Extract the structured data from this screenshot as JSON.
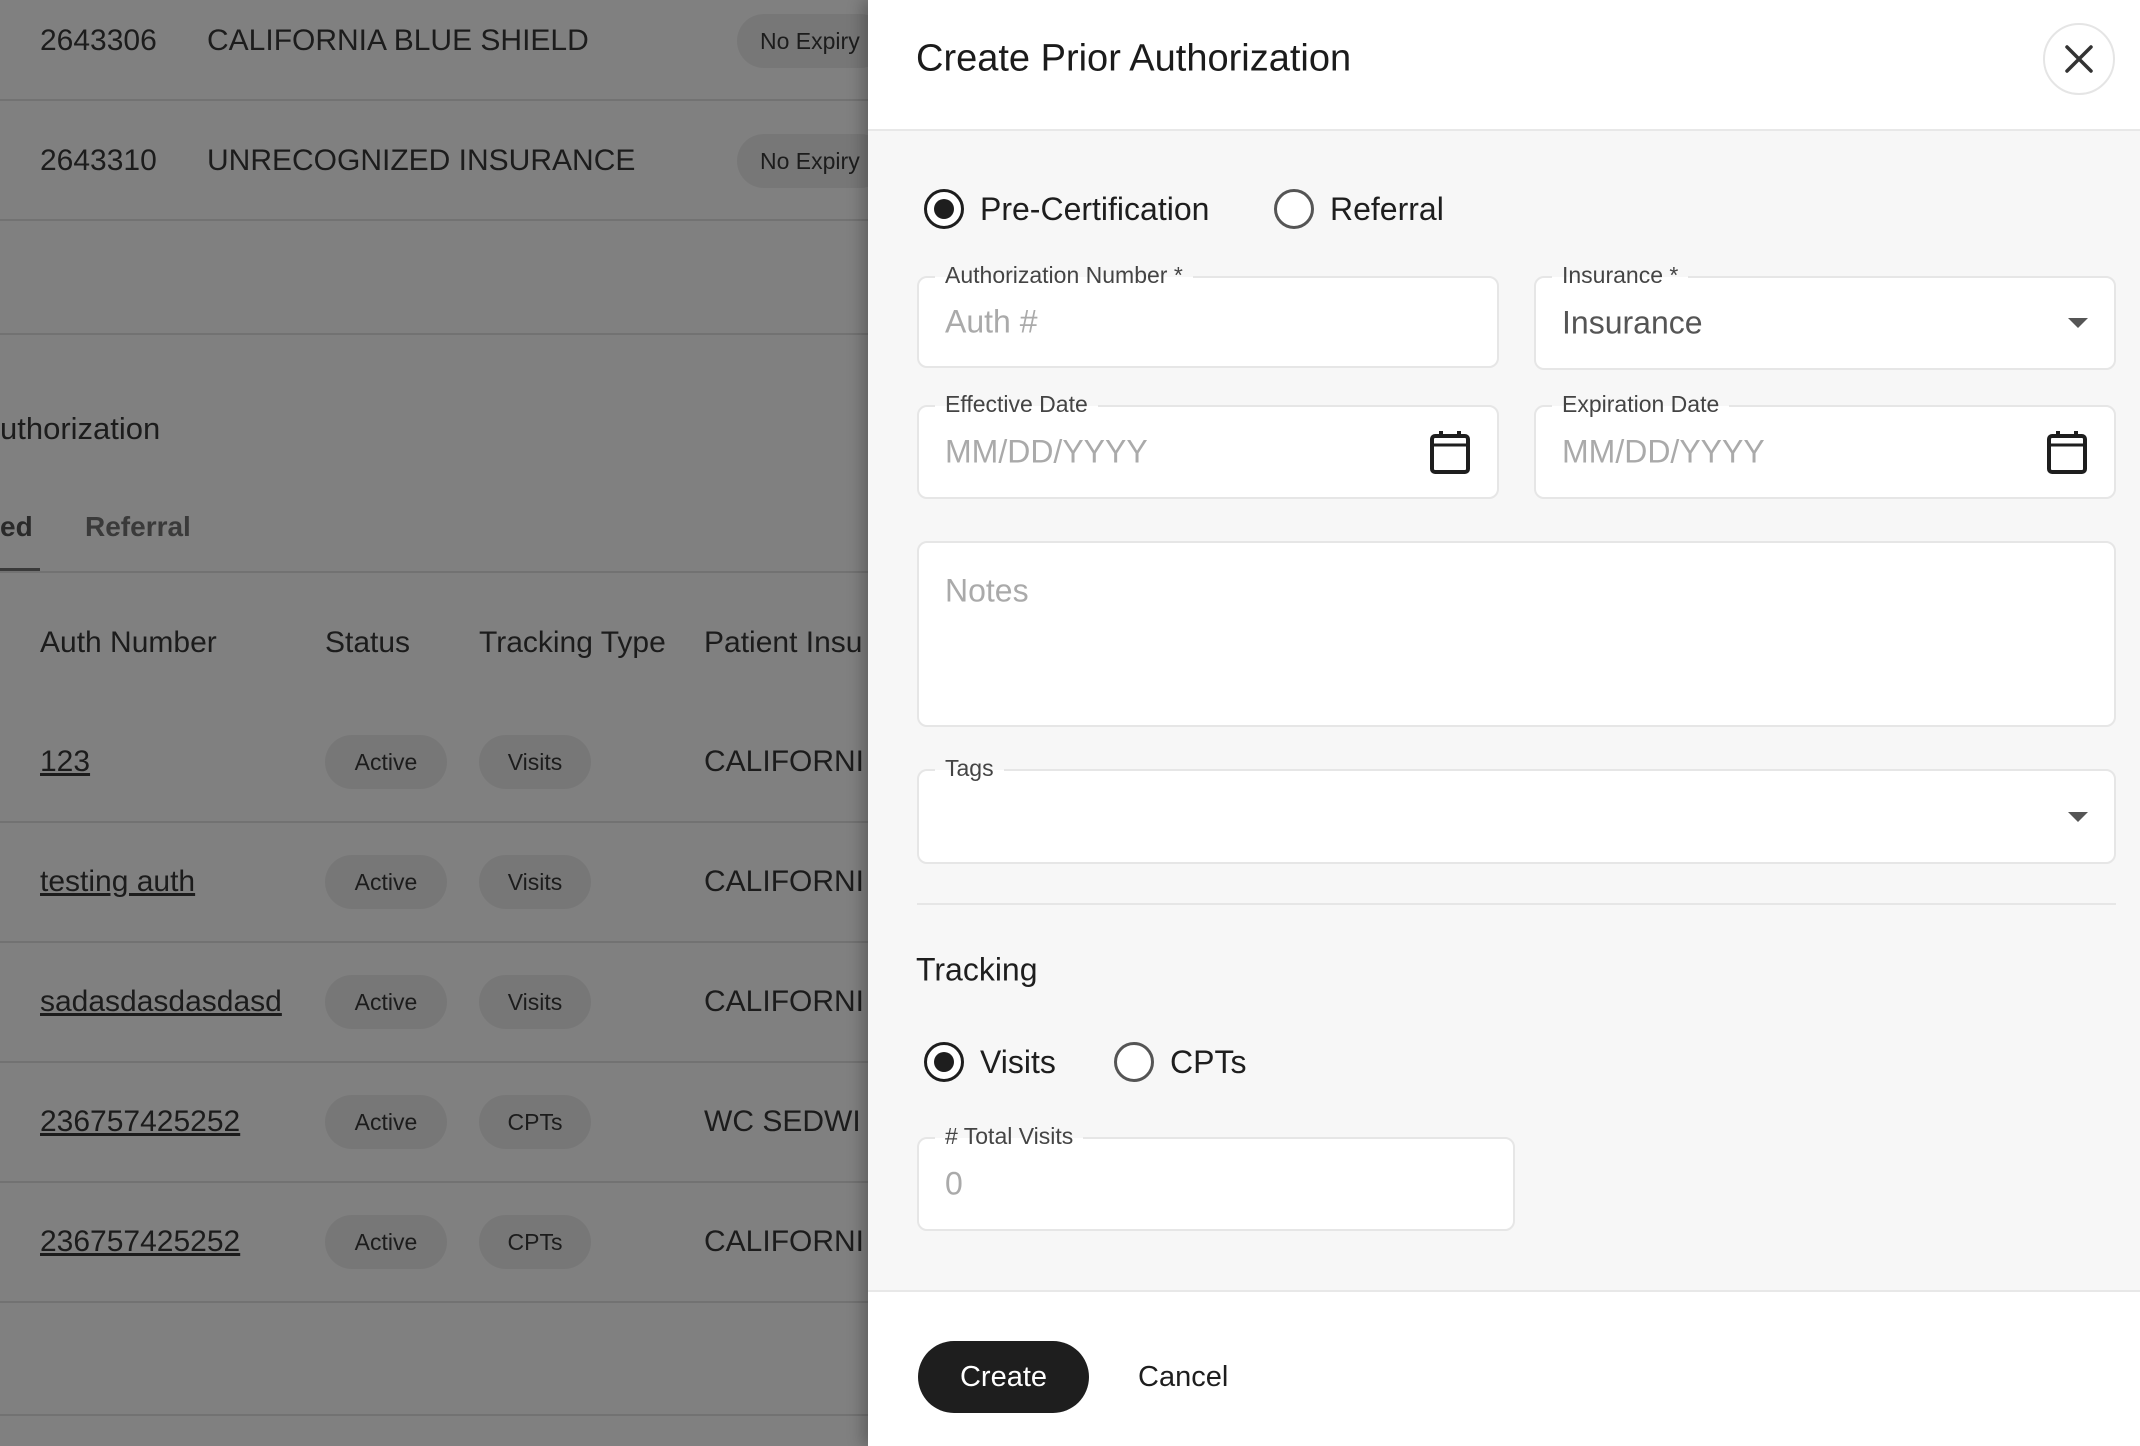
{
  "background": {
    "insurance_rows": [
      {
        "id": "2643306",
        "name": "CALIFORNIA BLUE SHIELD",
        "expiry": "No Expiry"
      },
      {
        "id": "2643310",
        "name": "UNRECOGNIZED INSURANCE",
        "expiry": "No Expiry"
      }
    ],
    "section_title": "uthorization",
    "tabs": [
      "ed",
      "Referral"
    ],
    "table": {
      "headers": [
        "Auth Number",
        "Status",
        "Tracking Type",
        "Patient Insu"
      ],
      "rows": [
        {
          "auth": "123",
          "status": "Active",
          "tracking": "Visits",
          "insurance": "CALIFORNI"
        },
        {
          "auth": "testing auth",
          "status": "Active",
          "tracking": "Visits",
          "insurance": "CALIFORNI"
        },
        {
          "auth": "sadasdasdasdasd",
          "status": "Active",
          "tracking": "Visits",
          "insurance": "CALIFORNI"
        },
        {
          "auth": "236757425252",
          "status": "Active",
          "tracking": "CPTs",
          "insurance": "WC SEDWI"
        },
        {
          "auth": "236757425252",
          "status": "Active",
          "tracking": "CPTs",
          "insurance": "CALIFORNI"
        }
      ]
    }
  },
  "panel": {
    "title": "Create Prior Authorization",
    "close_icon": "close-x-icon",
    "auth_type": {
      "options": [
        "Pre-Certification",
        "Referral"
      ],
      "selected": "Pre-Certification"
    },
    "auth_number": {
      "label": "Authorization Number *",
      "placeholder": "Auth #",
      "value": ""
    },
    "insurance": {
      "label": "Insurance *",
      "value": "Insurance"
    },
    "effective_date": {
      "label": "Effective Date",
      "placeholder": "MM/DD/YYYY"
    },
    "expiration_date": {
      "label": "Expiration Date",
      "placeholder": "MM/DD/YYYY"
    },
    "notes": {
      "placeholder": "Notes"
    },
    "tags": {
      "label": "Tags",
      "value": ""
    },
    "tracking": {
      "heading": "Tracking",
      "options": [
        "Visits",
        "CPTs"
      ],
      "selected": "Visits",
      "total_visits": {
        "label": "# Total Visits",
        "placeholder": "0"
      }
    },
    "footer": {
      "create_label": "Create",
      "cancel_label": "Cancel"
    }
  },
  "colors": {
    "overlay": "#808080",
    "primary_button": "#1e1e1e",
    "panel_bg": "#f7f7f7"
  }
}
